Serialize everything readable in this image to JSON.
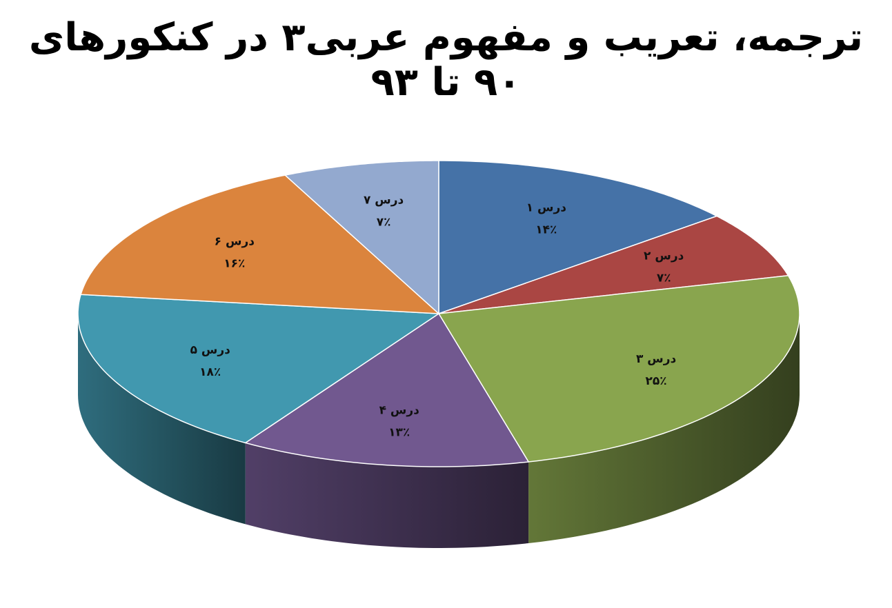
{
  "chart_data": {
    "type": "pie",
    "style": "3d",
    "title": "ترجمه، تعریب و مفهوم عربی۳ در کنکورهای ۹۰ تا ۹۳",
    "start": "top",
    "direction": "clockwise",
    "slices": [
      {
        "label": "درس ۱",
        "value": 14,
        "value_label": "۱۴٪",
        "color": "#4572A7"
      },
      {
        "label": "درس ۲",
        "value": 7,
        "value_label": "۷٪",
        "color": "#AA4643"
      },
      {
        "label": "درس ۳",
        "value": 25,
        "value_label": "۲۵٪",
        "color": "#89A54E"
      },
      {
        "label": "درس ۴",
        "value": 13,
        "value_label": "۱۳٪",
        "color": "#71588F"
      },
      {
        "label": "درس ۵",
        "value": 18,
        "value_label": "۱۸٪",
        "color": "#4198AF"
      },
      {
        "label": "درس ۶",
        "value": 16,
        "value_label": "۱۶٪",
        "color": "#DB843D"
      },
      {
        "label": "درس ۷",
        "value": 7,
        "value_label": "۷٪",
        "color": "#93A9CF"
      }
    ]
  }
}
